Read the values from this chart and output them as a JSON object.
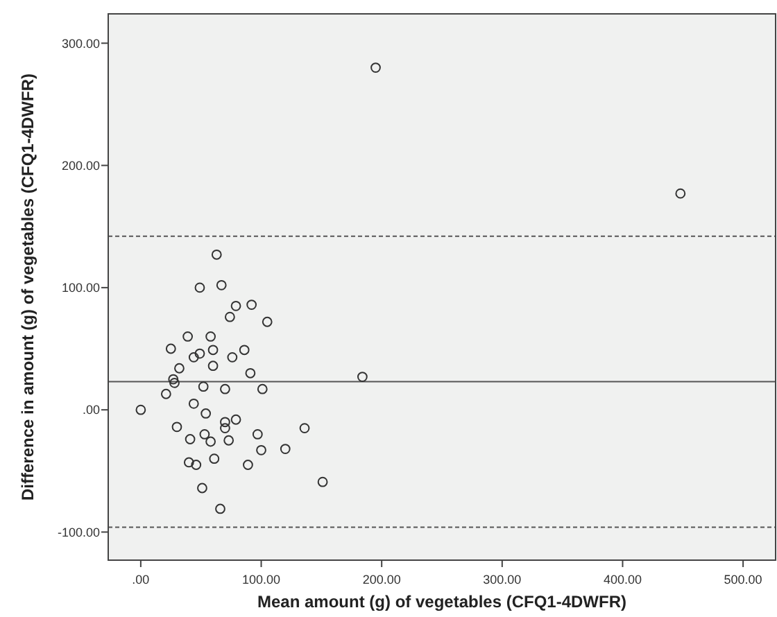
{
  "chart_data": {
    "type": "scatter",
    "xlabel": "Mean amount (g) of vegetables (CFQ1-4DWFR)",
    "ylabel": "Difference in amount (g) of vegetables (CFQ1-4DWFR)",
    "x": [
      195,
      448,
      63,
      67,
      49,
      79,
      92,
      74,
      105,
      39,
      58,
      25,
      60,
      86,
      49,
      44,
      76,
      60,
      32,
      91,
      184,
      27,
      28,
      52,
      70,
      101,
      21,
      0,
      44,
      54,
      30,
      70,
      70,
      79,
      136,
      41,
      53,
      58,
      73,
      97,
      100,
      120,
      40,
      46,
      61,
      89,
      151,
      51,
      66
    ],
    "series": [
      {
        "color": "#333333",
        "values": [
          280,
          177,
          127,
          102,
          100,
          85,
          86,
          76,
          72,
          60,
          60,
          50,
          49,
          49,
          46,
          43,
          43,
          36,
          34,
          30,
          27,
          25,
          22,
          19,
          17,
          17,
          13,
          0,
          5,
          -3,
          -14,
          -10,
          -15,
          -8,
          -15,
          -24,
          -20,
          -26,
          -25,
          -20,
          -33,
          -32,
          -43,
          -45,
          -40,
          -45,
          -59,
          -64,
          -81
        ]
      }
    ],
    "xlim": [
      -27,
      527
    ],
    "ylim": [
      -123,
      324
    ],
    "xticks": [
      {
        "value": 0,
        "label": ".00"
      },
      {
        "value": 100,
        "label": "100.00"
      },
      {
        "value": 200,
        "label": "200.00"
      },
      {
        "value": 300,
        "label": "300.00"
      },
      {
        "value": 400,
        "label": "400.00"
      },
      {
        "value": 500,
        "label": "500.00"
      }
    ],
    "yticks": [
      {
        "value": -100,
        "label": "-100.00"
      },
      {
        "value": 0,
        "label": ".00"
      },
      {
        "value": 100,
        "label": "100.00"
      },
      {
        "value": 200,
        "label": "200.00"
      },
      {
        "value": 300,
        "label": "300.00"
      }
    ],
    "ref_lines": [
      {
        "axis": "y",
        "value": 142,
        "line_style": "dashed",
        "color": "#555555"
      },
      {
        "axis": "y",
        "value": 23,
        "line_style": "solid",
        "color": "#555555"
      },
      {
        "axis": "y",
        "value": -96,
        "line_style": "dashed",
        "color": "#555555"
      }
    ],
    "grid": false,
    "marker": "circle"
  }
}
